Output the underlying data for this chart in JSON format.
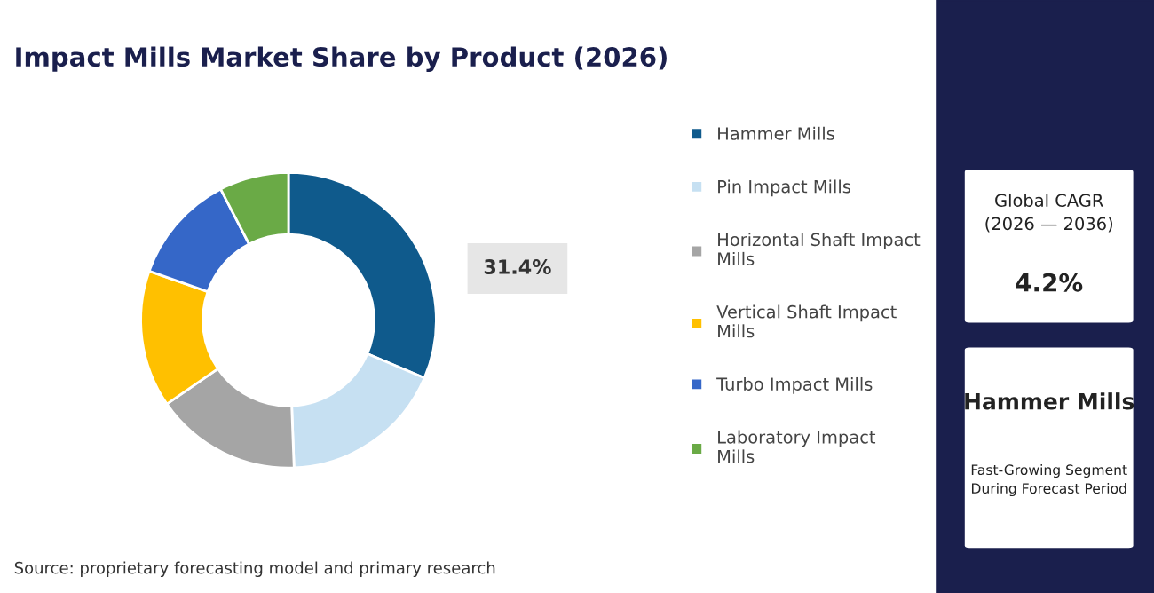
{
  "chart_data": {
    "type": "donut",
    "title": "Impact Mills Market Share by Product (2026)",
    "categories": [
      "Hammer Mills",
      "Pin Impact Mills",
      "Horizontal Shaft Impact Mills",
      "Vertical Shaft Impact Mills",
      "Turbo Impact Mills",
      "Laboratory Impact Mills"
    ],
    "values": [
      31.4,
      18,
      16,
      15,
      12,
      7.6
    ],
    "colors": [
      "#0f5a8c",
      "#c6e0f2",
      "#a5a5a5",
      "#ffc000",
      "#3567c8",
      "#6aaa46"
    ],
    "value_labels": [
      "31.4%",
      null,
      null,
      null,
      null,
      null
    ],
    "legend": "right",
    "annotations": [
      "Source: proprietary forecasting model and primary research",
      "Global CAGR\n(2026 — 2036)",
      "4.2%",
      "Hammer Mills",
      "Fast-Growing Segment\nDuring Forecast Period"
    ]
  }
}
